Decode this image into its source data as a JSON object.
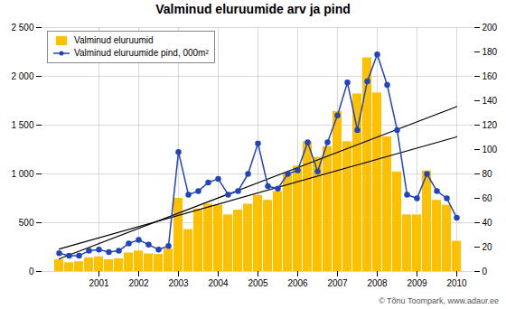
{
  "chart_data": {
    "type": "bar",
    "title": "Valminud eluruumide arv ja pind",
    "categories": [
      null,
      null,
      null,
      null,
      "2001",
      null,
      null,
      null,
      "2002",
      null,
      null,
      null,
      "2003",
      null,
      null,
      null,
      "2004",
      null,
      null,
      null,
      "2005",
      null,
      null,
      null,
      "2006",
      null,
      null,
      null,
      "2007",
      null,
      null,
      null,
      "2008",
      null,
      null,
      null,
      "2009",
      null,
      null,
      null,
      "2010"
    ],
    "series": [
      {
        "name": "Valminud eluruumid",
        "type": "bar",
        "color": "#FFC000",
        "values": [
          120,
          90,
          100,
          140,
          150,
          120,
          130,
          190,
          210,
          180,
          175,
          230,
          750,
          430,
          640,
          690,
          680,
          580,
          630,
          690,
          780,
          730,
          820,
          1000,
          1080,
          1330,
          1170,
          1280,
          1640,
          1330,
          1820,
          2190,
          1830,
          1380,
          1020,
          580,
          580,
          1030,
          730,
          680,
          310
        ]
      },
      {
        "name": "Valminud eluruumide pind, 000m²",
        "type": "line",
        "axis": "y2",
        "color": "#2244BB",
        "marker": "circle",
        "values": [
          15,
          13,
          13,
          17,
          18,
          16,
          17,
          23,
          26,
          22,
          18,
          21,
          98,
          63,
          66,
          73,
          76,
          63,
          66,
          80,
          105,
          70,
          68,
          80,
          83,
          106,
          82,
          106,
          128,
          155,
          116,
          156,
          178,
          153,
          116,
          63,
          60,
          80,
          66,
          60,
          44
        ]
      }
    ],
    "trend_lines": [
      {
        "x": [
          0,
          40
        ],
        "y": [
          130,
          1690
        ],
        "color": "black"
      },
      {
        "x": [
          0,
          40
        ],
        "y": [
          230,
          1380
        ],
        "color": "black"
      }
    ],
    "ylim": [
      0,
      2500
    ],
    "yticks": [
      0,
      500,
      {
        "value": 1000,
        "label": "1 000"
      },
      {
        "value": 1500,
        "label": "1 500"
      },
      {
        "value": 2000,
        "label": "2 000"
      },
      {
        "value": 2500,
        "label": "2 500"
      }
    ],
    "y2lim": [
      0,
      200
    ],
    "y2ticks": [
      0,
      20,
      40,
      60,
      80,
      100,
      120,
      140,
      160,
      180,
      200
    ],
    "grid": true,
    "legend": "upper left",
    "annotations": [
      "© Tõnu Toompark, www.adaur.ee"
    ]
  }
}
